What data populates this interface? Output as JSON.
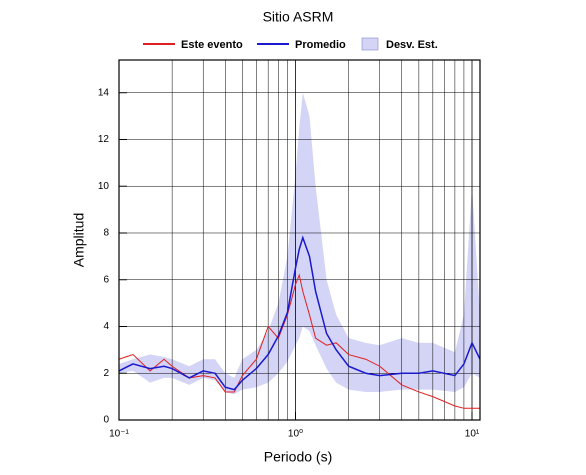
{
  "chart_data": {
    "type": "line",
    "title": "Sitio ASRM",
    "xlabel": "Periodo (s)",
    "ylabel": "Amplitud",
    "xscale": "log",
    "grid": true,
    "legend": "top",
    "xlim": [
      0.1,
      11.1
    ],
    "ylim": [
      0,
      15.4
    ],
    "xticks": [
      {
        "value": 0.1,
        "label": "10⁻¹"
      },
      {
        "value": 1,
        "label": "10⁰"
      },
      {
        "value": 10,
        "label": "10¹"
      }
    ],
    "yticks": [
      0,
      2,
      4,
      6,
      8,
      10,
      12,
      14
    ],
    "x": [
      0.1,
      0.12,
      0.15,
      0.18,
      0.2,
      0.25,
      0.3,
      0.35,
      0.4,
      0.45,
      0.5,
      0.6,
      0.7,
      0.8,
      0.9,
      1.0,
      1.05,
      1.1,
      1.2,
      1.3,
      1.5,
      1.7,
      2.0,
      2.5,
      3.0,
      4.0,
      5.0,
      6.0,
      8.0,
      9.0,
      10.0,
      11.1
    ],
    "series": [
      {
        "name": "Este evento",
        "color": "#e02020",
        "values": [
          2.6,
          2.8,
          2.1,
          2.6,
          2.3,
          1.8,
          1.9,
          1.8,
          1.2,
          1.2,
          1.9,
          2.6,
          4.0,
          3.5,
          4.5,
          5.8,
          6.2,
          5.5,
          4.5,
          3.5,
          3.2,
          3.3,
          2.8,
          2.6,
          2.3,
          1.5,
          1.2,
          1.0,
          0.6,
          0.5,
          0.5,
          0.5
        ]
      },
      {
        "name": "Promedio",
        "color": "#1a1acc",
        "values": [
          2.1,
          2.4,
          2.2,
          2.3,
          2.2,
          1.8,
          2.1,
          2.0,
          1.4,
          1.3,
          1.7,
          2.2,
          2.8,
          3.6,
          4.6,
          6.5,
          7.3,
          7.8,
          7.0,
          5.5,
          3.7,
          3.0,
          2.3,
          2.0,
          1.9,
          2.0,
          2.0,
          2.1,
          1.9,
          2.4,
          3.3,
          2.6
        ]
      },
      {
        "name": "Desv. Est.",
        "color": "#d4d4f7",
        "lower": [
          2.0,
          2.1,
          1.6,
          1.8,
          1.8,
          1.5,
          1.8,
          1.7,
          1.2,
          1.1,
          1.3,
          1.4,
          1.6,
          2.0,
          2.5,
          3.2,
          3.5,
          4.0,
          3.8,
          3.2,
          2.2,
          1.6,
          1.3,
          1.2,
          1.2,
          1.3,
          1.3,
          1.3,
          1.2,
          1.4,
          2.0,
          1.8
        ],
        "upper": [
          2.4,
          2.6,
          2.8,
          2.7,
          2.6,
          2.3,
          2.6,
          2.6,
          2.0,
          1.8,
          2.6,
          3.0,
          3.8,
          5.0,
          7.0,
          10.5,
          12.5,
          14.0,
          13.0,
          10.0,
          6.0,
          4.5,
          3.5,
          3.3,
          3.2,
          3.5,
          3.3,
          3.3,
          2.9,
          4.5,
          10.0,
          4.5
        ]
      }
    ]
  }
}
